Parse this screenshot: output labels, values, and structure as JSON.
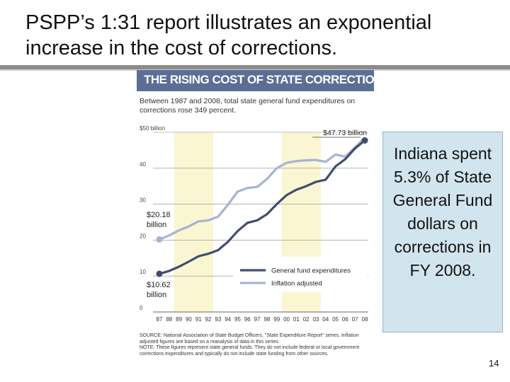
{
  "slide": {
    "title": "PSPP’s 1:31 report illustrates an exponential increase in the cost of corrections.",
    "callout": "Indiana spent 5.3% of State General Fund dollars on corrections in FY 2008.",
    "page_number": "14"
  },
  "chart_data": {
    "type": "line",
    "title": "THE RISING COST OF STATE CORRECTIONS",
    "subtitle": "Between 1987 and 2008, total state general fund expenditures on corrections rose 349 percent.",
    "categories": [
      "87",
      "88",
      "89",
      "90",
      "91",
      "92",
      "93",
      "94",
      "95",
      "96",
      "97",
      "98",
      "99",
      "00",
      "01",
      "02",
      "03",
      "04",
      "05",
      "06",
      "07",
      "08"
    ],
    "series": [
      {
        "name": "General fund expenditures",
        "color": "#3f4d6e",
        "values": [
          10.62,
          11.4,
          12.6,
          14.0,
          15.5,
          16.2,
          17.2,
          19.5,
          22.5,
          24.8,
          25.5,
          27.2,
          30.0,
          32.5,
          34.0,
          35.0,
          36.2,
          36.8,
          40.5,
          42.5,
          45.5,
          47.73
        ]
      },
      {
        "name": "Inflation adjusted",
        "color": "#a6b3d4",
        "values": [
          20.18,
          21.3,
          22.7,
          23.8,
          25.2,
          25.5,
          26.5,
          29.8,
          33.5,
          34.5,
          34.8,
          37.0,
          40.0,
          41.5,
          42.0,
          42.2,
          42.3,
          41.8,
          43.8,
          43.2,
          45.8,
          48.5
        ]
      }
    ],
    "ylim": [
      0,
      50
    ],
    "yticks": [
      "0",
      "10",
      "20",
      "30",
      "40",
      "$50 billion"
    ],
    "annotations": {
      "end_label": "$47.73 billion",
      "start_gf": "$10.62 billion",
      "start_inf": "$20.18 billion"
    },
    "highlight_bands": [
      [
        "89",
        "92"
      ],
      [
        "00",
        "03"
      ]
    ],
    "grid": true,
    "legend": "bottom-right",
    "source": "SOURCE: National Association of State Budget Officers, \"State Expenditure Report\" series. Inflation adjusted figures are based on a reanalysis of data in this series.",
    "note": "NOTE: These figures represent state general funds. They do not include federal or local government corrections expenditures and typically do not include state funding from other sources."
  }
}
